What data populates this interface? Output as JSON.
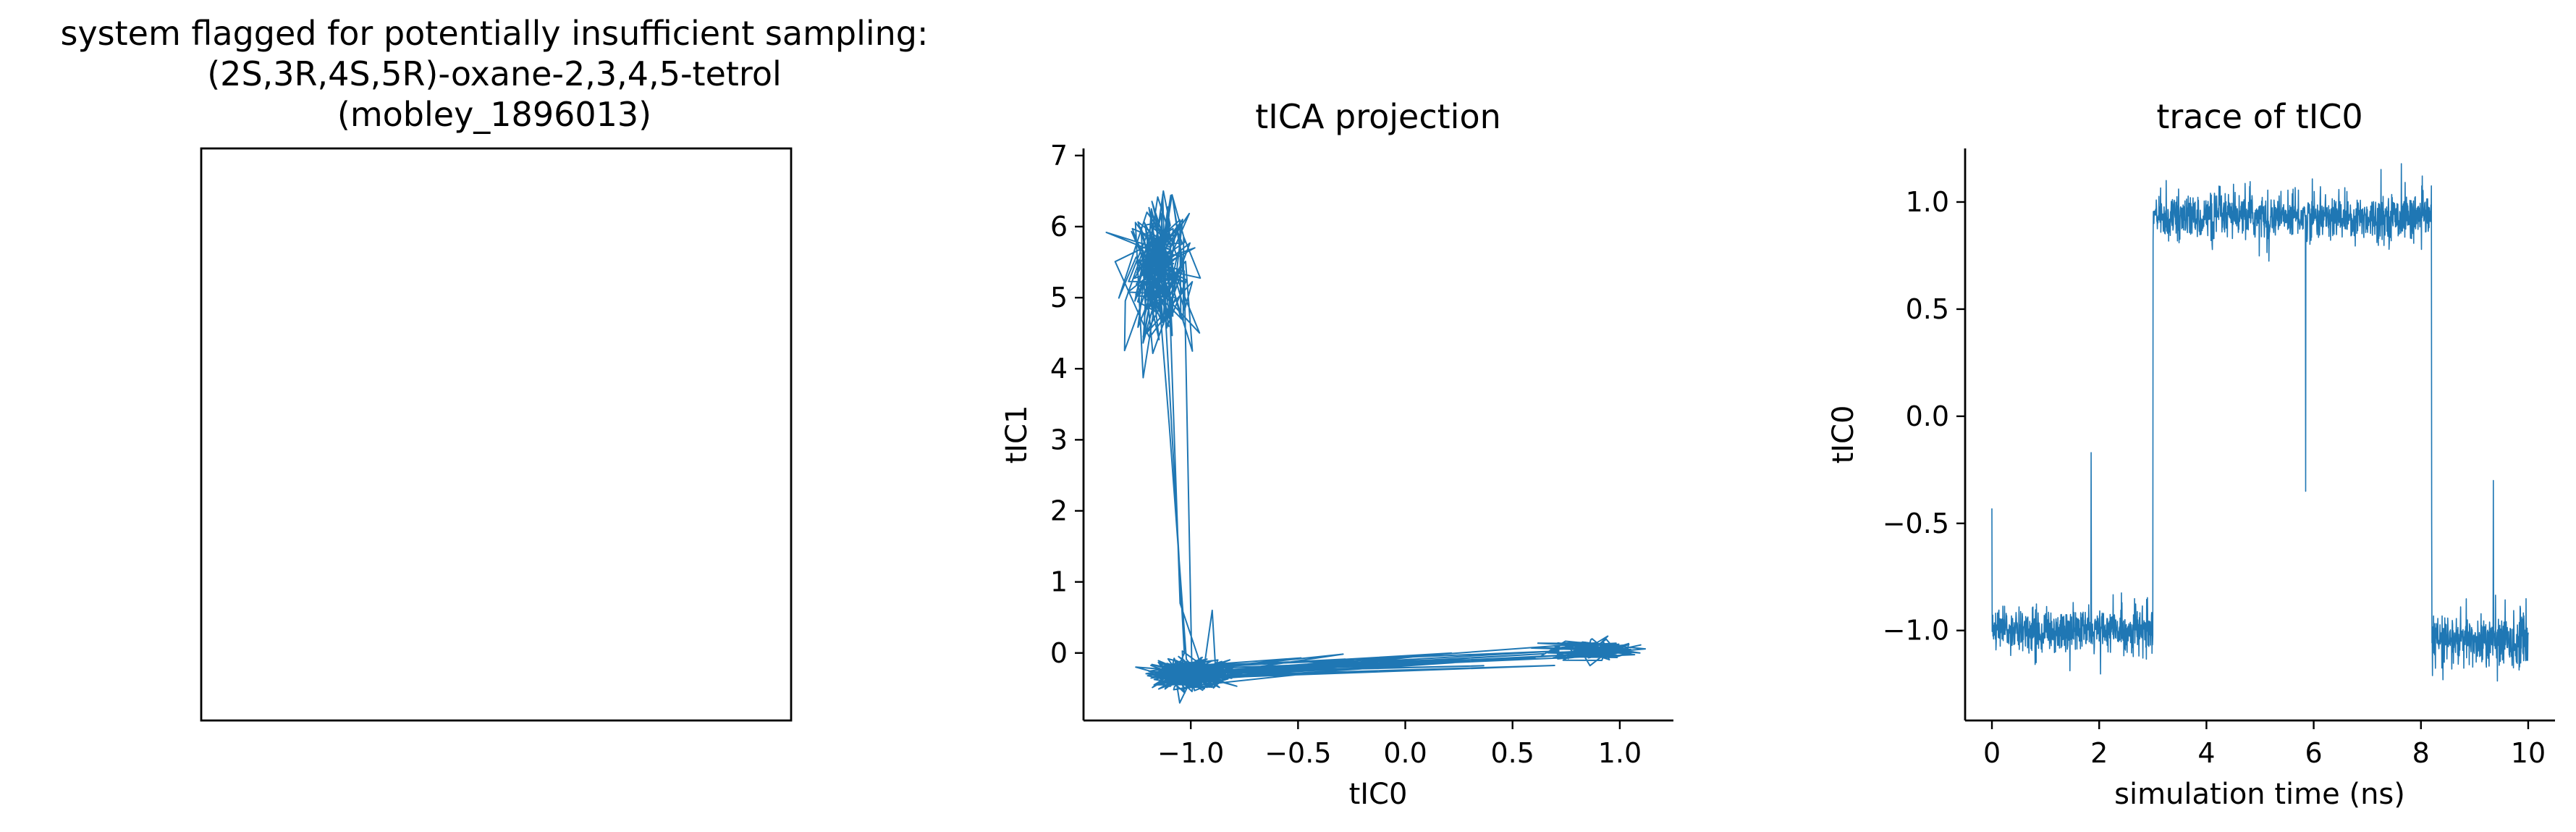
{
  "figure_title_lines": [
    "system flagged for potentially insufficient sampling:",
    "(2S,3R,4S,5R)-oxane-2,3,4,5-tetrol",
    "(mobley_1896013)"
  ],
  "colors": {
    "line": "#1f77b4",
    "axis": "#000000",
    "background": "#ffffff"
  },
  "chart_data": [
    {
      "type": "empty",
      "title": "",
      "note_visible": "blank framed panel (molecule image area)"
    },
    {
      "type": "line",
      "title": "tICA projection",
      "xlabel": "tIC0",
      "ylabel": "tIC1",
      "xlim": [
        -1.5,
        1.25
      ],
      "ylim": [
        -0.95,
        7.1
      ],
      "xticks": [
        -1.0,
        -0.5,
        0.0,
        0.5,
        1.0
      ],
      "xtick_labels": [
        "−1.0",
        "−0.5",
        "0.0",
        "0.5",
        "1.0"
      ],
      "yticks": [
        0,
        1,
        2,
        3,
        4,
        5,
        6,
        7
      ],
      "ytick_labels": [
        "0",
        "1",
        "2",
        "3",
        "4",
        "5",
        "6",
        "7"
      ],
      "grid": false,
      "clusters": [
        {
          "center": [
            -1.15,
            5.4
          ],
          "spread": [
            0.07,
            0.45
          ]
        },
        {
          "center": [
            -1.0,
            -0.3
          ],
          "spread": [
            0.09,
            0.1
          ]
        },
        {
          "center": [
            0.88,
            0.05
          ],
          "spread": [
            0.1,
            0.08
          ]
        }
      ]
    },
    {
      "type": "line",
      "title": "trace of tIC0",
      "xlabel": "simulation time (ns)",
      "ylabel": "tIC0",
      "xlim": [
        -0.5,
        10.5
      ],
      "ylim": [
        -1.42,
        1.25
      ],
      "xticks": [
        0,
        2,
        4,
        6,
        8,
        10
      ],
      "xtick_labels": [
        "0",
        "2",
        "4",
        "6",
        "8",
        "10"
      ],
      "yticks": [
        -1.0,
        -0.5,
        0.0,
        0.5,
        1.0
      ],
      "ytick_labels": [
        "−1.0",
        "−0.5",
        "0.0",
        "0.5",
        "1.0"
      ],
      "grid": false,
      "segments": [
        {
          "x_start": 0.0,
          "x_end": 3.0,
          "mean": -1.0,
          "noise": 0.05
        },
        {
          "x_start": 3.0,
          "x_end": 8.2,
          "mean": 0.93,
          "noise": 0.05
        },
        {
          "x_start": 8.2,
          "x_end": 10.0,
          "mean": -1.05,
          "noise": 0.06
        }
      ],
      "spikes": [
        {
          "x": 0.0,
          "y": -0.43
        },
        {
          "x": 1.85,
          "y": -0.17
        },
        {
          "x": 5.85,
          "y": -0.35
        },
        {
          "x": 8.2,
          "y": -0.5
        },
        {
          "x": 9.35,
          "y": -0.3
        }
      ]
    }
  ]
}
